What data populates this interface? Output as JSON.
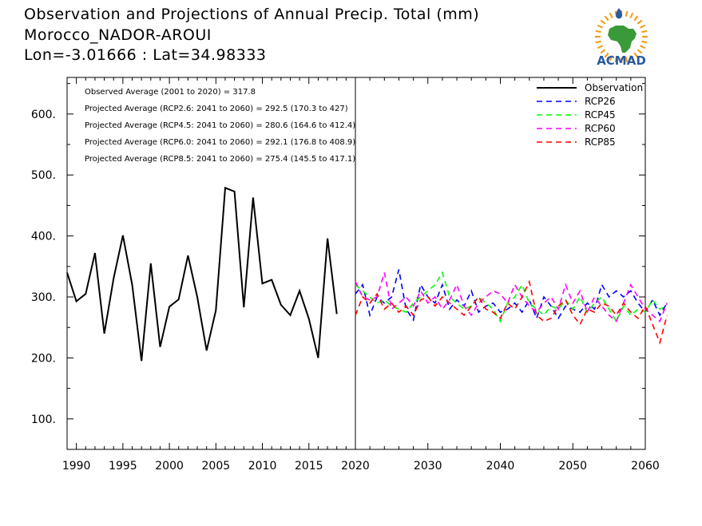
{
  "header": {
    "title": "Observation and Projections of Annual Precip. Total (mm)",
    "station": "Morocco_NADOR-AROUI",
    "coords": "Lon=-3.01666 : Lat=34.98333"
  },
  "logo": {
    "text": "ACMAD",
    "colors": {
      "africa": "#3a9a3a",
      "sun": "#f0a020",
      "text": "#2a5aa0",
      "drop": "#2a5aa0"
    }
  },
  "stats": [
    "Observed Average (2001 to 2020) = 317.8",
    "Projected Average (RCP2.6: 2041 to 2060) = 292.5 (170.3 to 427)",
    "Projected Average (RCP4.5: 2041 to 2060) = 280.6 (164.6 to 412.4)",
    "Projected Average (RCP6.0: 2041 to 2060) = 292.1 (176.8 to 408.9)",
    "Projected Average (RCP8.5: 2041 to 2060) = 275.4 (145.5 to 417.1)"
  ],
  "chart_data": {
    "type": "line",
    "ylim": [
      50,
      660
    ],
    "yticks": [
      100,
      200,
      300,
      400,
      500,
      600
    ],
    "ytick_labels": [
      "100.",
      "200.",
      "300.",
      "400.",
      "500.",
      "600."
    ],
    "xticks_left": [
      1990,
      1995,
      2000,
      2005,
      2010,
      2015,
      2020
    ],
    "xticks_right": [
      2020,
      2030,
      2040,
      2050,
      2060
    ],
    "xtick_labels_left": [
      "1990",
      "1995",
      "2000",
      "2005",
      "2010",
      "2015",
      "2020"
    ],
    "xtick_labels_right": [
      "2020",
      "2030",
      "2040",
      "2050",
      "2060"
    ],
    "legend_position": "top-right",
    "series": [
      {
        "name": "Observation",
        "color": "#000000",
        "dashed": false,
        "start": 1989,
        "values": [
          340,
          293,
          305,
          372,
          240,
          330,
          401,
          320,
          195,
          355,
          218,
          284,
          296,
          368,
          300,
          212,
          278,
          479,
          473,
          283,
          463,
          322,
          328,
          287,
          270,
          310,
          264,
          200,
          396,
          272
        ]
      },
      {
        "name": "RCP26",
        "color": "#0000ff",
        "dashed": true,
        "start": 2020,
        "values": [
          305,
          320,
          270,
          300,
          290,
          300,
          345,
          280,
          262,
          320,
          300,
          290,
          320,
          280,
          295,
          285,
          310,
          275,
          285,
          290,
          275,
          280,
          290,
          275,
          295,
          265,
          300,
          285,
          265,
          285,
          280,
          275,
          290,
          280,
          320,
          300,
          310,
          300,
          310,
          290,
          275,
          295,
          270,
          290
        ]
      },
      {
        "name": "RCP45",
        "color": "#00ff00",
        "dashed": true,
        "start": 2020,
        "values": [
          320,
          310,
          300,
          290,
          295,
          285,
          280,
          275,
          290,
          300,
          310,
          320,
          340,
          300,
          290,
          280,
          285,
          300,
          290,
          280,
          260,
          290,
          300,
          320,
          290,
          280,
          270,
          285,
          280,
          295,
          280,
          300,
          275,
          290,
          300,
          280,
          260,
          285,
          270,
          280,
          275,
          295,
          280,
          285
        ]
      },
      {
        "name": "RCP60",
        "color": "#ff00ff",
        "dashed": true,
        "start": 2020,
        "values": [
          325,
          300,
          295,
          300,
          340,
          280,
          290,
          300,
          285,
          310,
          290,
          300,
          280,
          295,
          320,
          285,
          270,
          290,
          300,
          310,
          305,
          290,
          320,
          300,
          285,
          275,
          290,
          300,
          280,
          320,
          290,
          310,
          275,
          300,
          285,
          270,
          260,
          290,
          320,
          300,
          280,
          270,
          260,
          290
        ]
      },
      {
        "name": "RCP85",
        "color": "#ff0000",
        "dashed": true,
        "start": 2020,
        "values": [
          270,
          300,
          290,
          305,
          280,
          290,
          275,
          285,
          270,
          295,
          300,
          285,
          300,
          290,
          280,
          270,
          285,
          300,
          280,
          275,
          265,
          290,
          280,
          300,
          325,
          270,
          260,
          265,
          285,
          295,
          270,
          255,
          280,
          275,
          290,
          285,
          270,
          290,
          275,
          265,
          285,
          255,
          225,
          270
        ]
      }
    ]
  }
}
